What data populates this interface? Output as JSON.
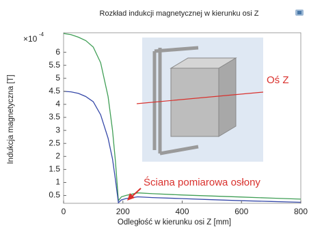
{
  "chart_data": {
    "type": "line",
    "title": "Rozkład indukcji magnetycznej w kierunku osi Z",
    "x_label": "Odległość w kierunku osi Z [mm]",
    "y_label": "Indukcja magnetyczna [T]",
    "y_multiplier": "×10",
    "y_multiplier_exponent": "-4",
    "annotations": [
      "Oś Z",
      "Ściana pomiarowa osłony"
    ],
    "x": [
      0,
      25,
      50,
      75,
      100,
      125,
      150,
      165,
      175,
      185,
      195,
      210,
      250,
      300,
      400,
      500,
      600,
      700,
      800
    ],
    "series": [
      {
        "color": "#3f9e55",
        "values": [
          6.72,
          6.68,
          6.58,
          6.45,
          6.2,
          5.6,
          4.3,
          3.0,
          1.8,
          0.3,
          0.45,
          0.5,
          0.6,
          0.57,
          0.52,
          0.48,
          0.44,
          0.4,
          0.36
        ]
      },
      {
        "color": "#3548a8",
        "values": [
          4.5,
          4.48,
          4.42,
          4.3,
          4.1,
          3.6,
          2.7,
          1.9,
          1.1,
          0.22,
          0.33,
          0.38,
          0.45,
          0.42,
          0.38,
          0.34,
          0.3,
          0.27,
          0.24
        ]
      }
    ],
    "xlim": [
      0,
      800
    ],
    "ylim": [
      0.2,
      6.75
    ],
    "xticks": [
      0,
      200,
      400,
      600,
      800
    ],
    "yticks": [
      0.5,
      1,
      1.5,
      2,
      2.5,
      3,
      3.5,
      4,
      4.5,
      5,
      5.5,
      6
    ]
  }
}
